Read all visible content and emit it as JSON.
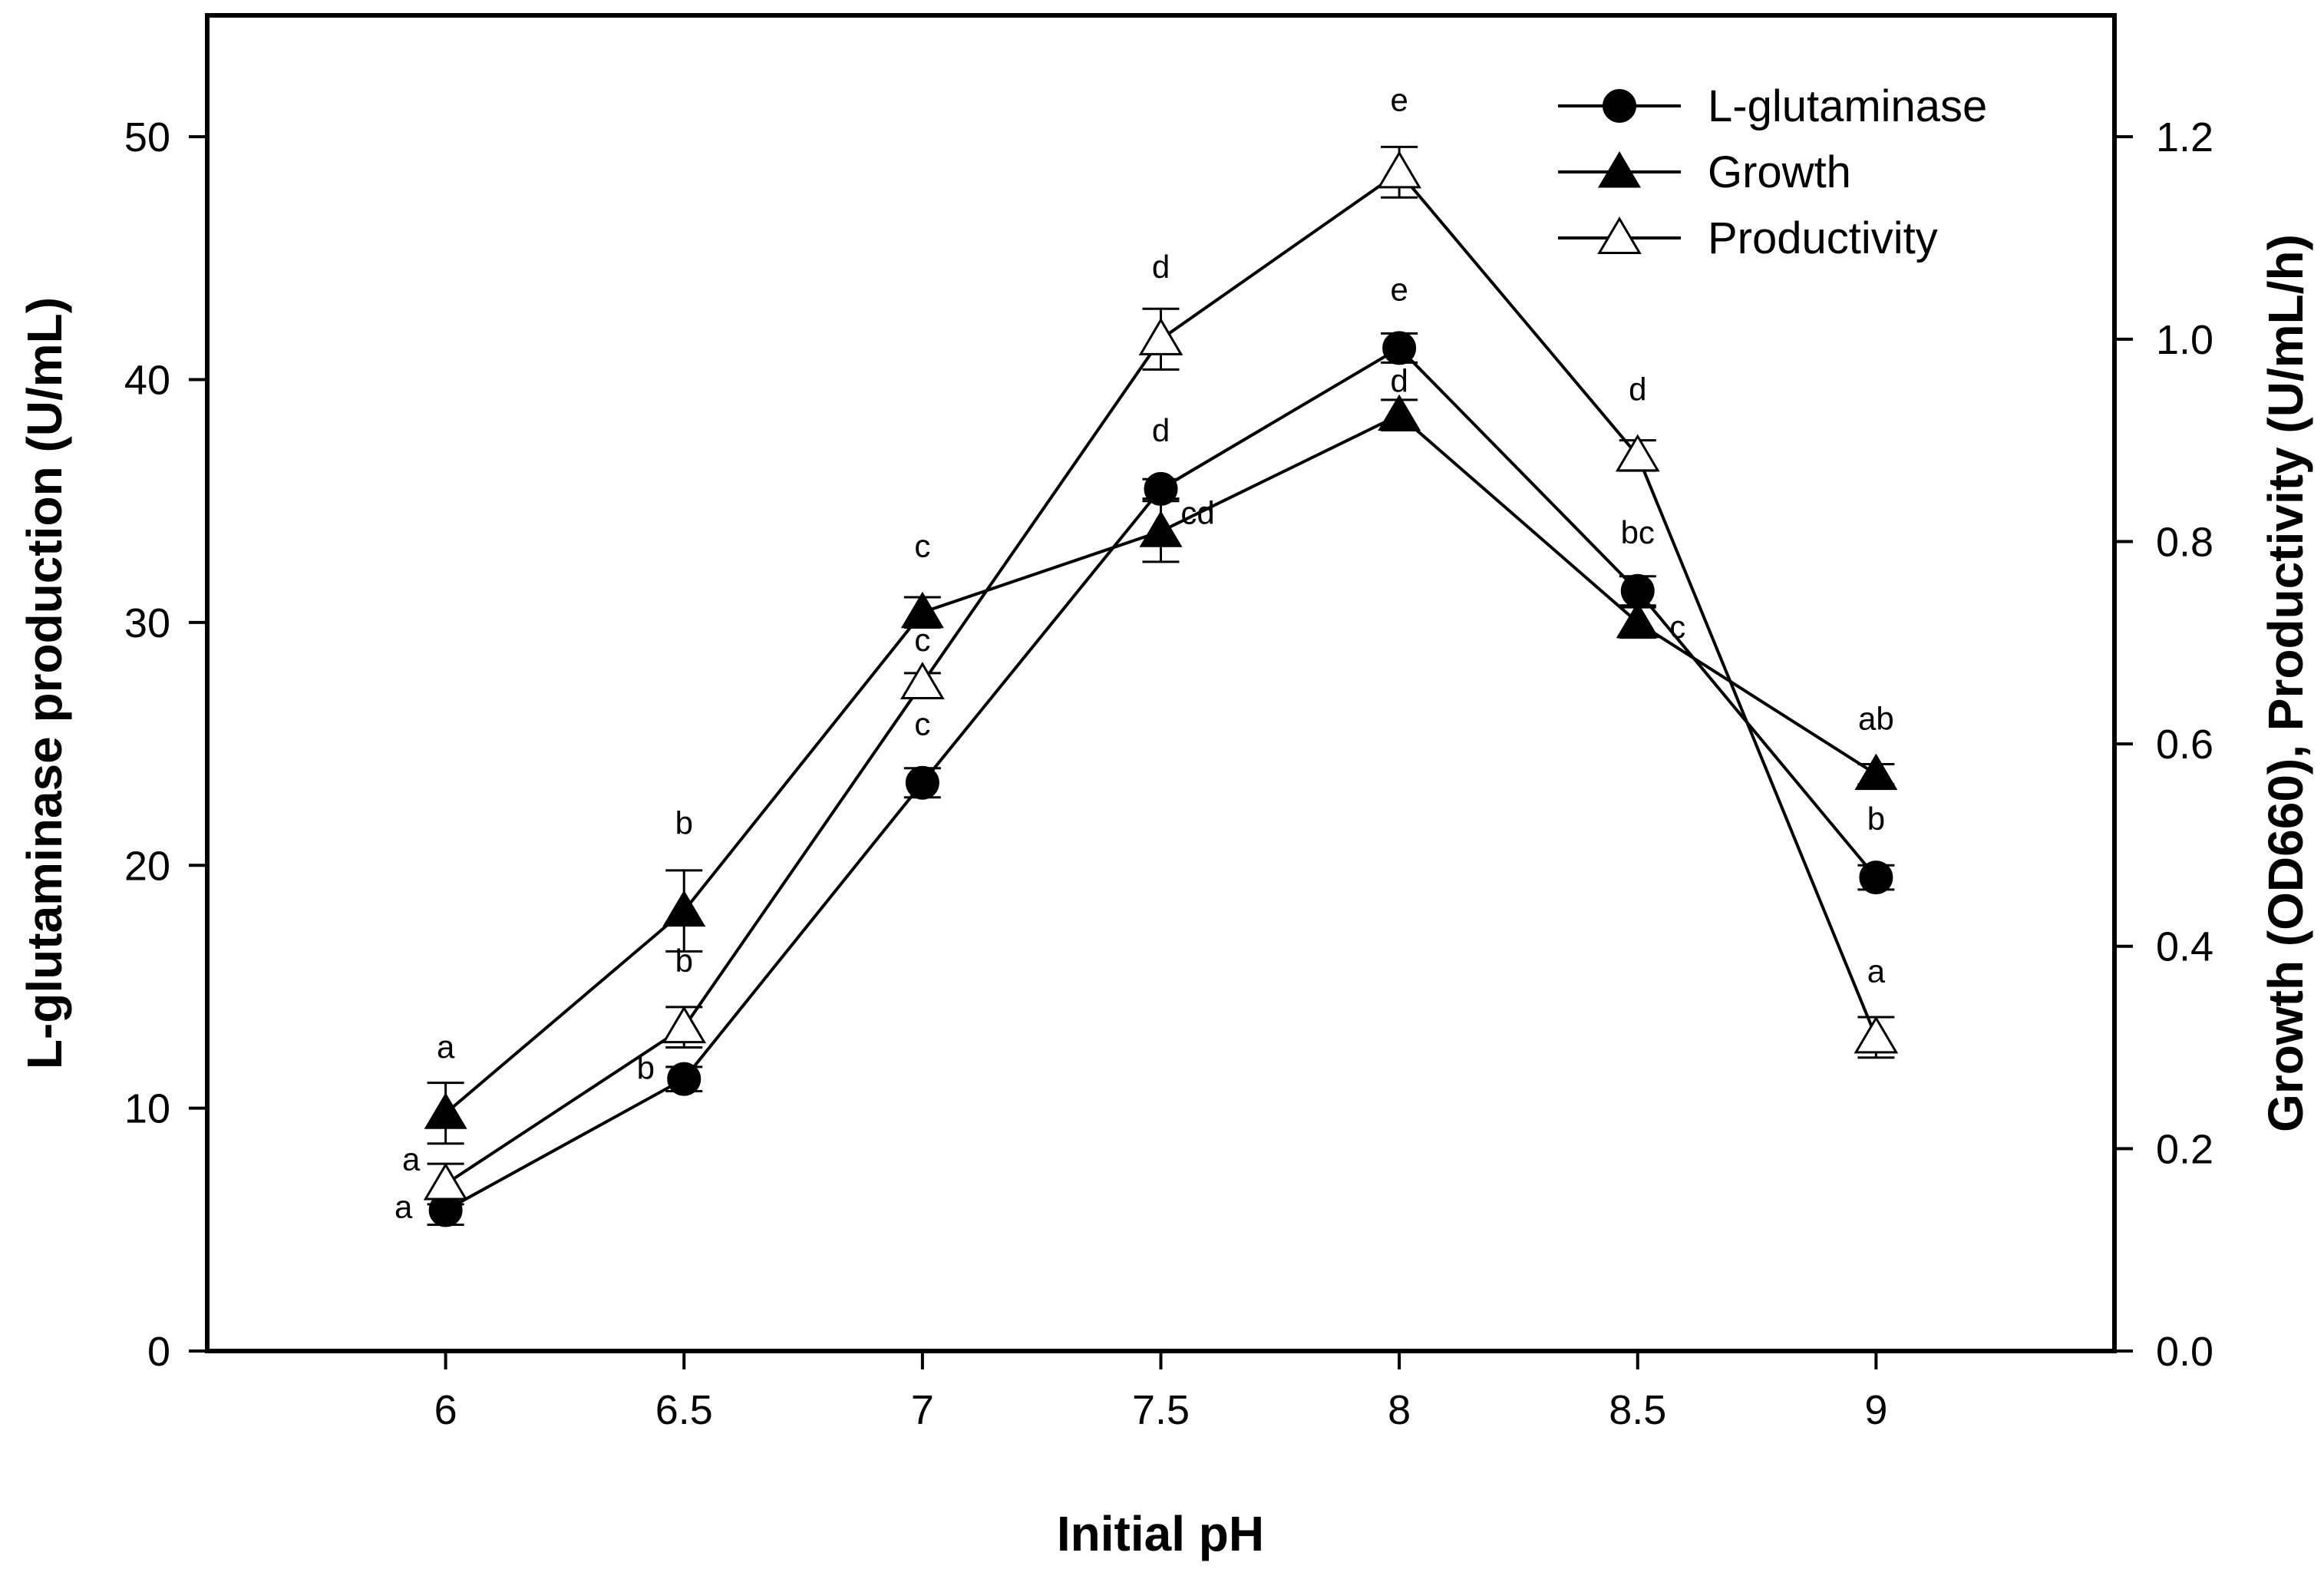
{
  "chart_data": {
    "type": "line",
    "xlabel": "Initial pH",
    "ylabel_left": "L-glutaminase production (U/mL)",
    "ylabel_right": "Growth (OD660), Productivity (U/mL/h)",
    "x": [
      6,
      6.5,
      7,
      7.5,
      8,
      8.5,
      9
    ],
    "x_tick_labels": [
      "6",
      "6.5",
      "7",
      "7.5",
      "8",
      "8.5",
      "9"
    ],
    "xlim": [
      5.5,
      9.5
    ],
    "ylim_left": [
      0,
      55
    ],
    "ylim_right": [
      0,
      1.32
    ],
    "yticks_left": [
      "0",
      "10",
      "20",
      "30",
      "40",
      "50"
    ],
    "yticks_right": [
      "0.0",
      "0.2",
      "0.4",
      "0.6",
      "0.8",
      "1.0",
      "1.2"
    ],
    "legend_position": "top-right",
    "series": [
      {
        "name": "L-glutaminase",
        "axis": "left",
        "marker": "filled-circle",
        "values": [
          5.8,
          11.2,
          23.4,
          35.5,
          41.3,
          31.3,
          19.5
        ],
        "errors": [
          0.6,
          0.5,
          0.6,
          0.4,
          0.6,
          0.6,
          0.5
        ],
        "letters": [
          "a",
          "b",
          "c",
          "d",
          "e",
          "bc",
          "b"
        ]
      },
      {
        "name": "Growth",
        "axis": "right",
        "marker": "filled-triangle",
        "values": [
          0.235,
          0.435,
          0.73,
          0.81,
          0.925,
          0.72,
          0.57
        ],
        "errors": [
          0.03,
          0.04,
          0.015,
          0.03,
          0.015,
          0.015,
          0.01
        ],
        "letters": [
          "a",
          "b",
          "c",
          "cd",
          "d",
          "c",
          "ab"
        ]
      },
      {
        "name": "Productivity",
        "axis": "right",
        "marker": "open-triangle",
        "values": [
          0.165,
          0.32,
          0.66,
          1.0,
          1.165,
          0.885,
          0.31
        ],
        "errors": [
          0.02,
          0.02,
          0.01,
          0.03,
          0.025,
          0.015,
          0.02
        ],
        "letters": [
          "a",
          "b",
          "c",
          "d",
          "e",
          "d",
          "a"
        ]
      }
    ]
  }
}
